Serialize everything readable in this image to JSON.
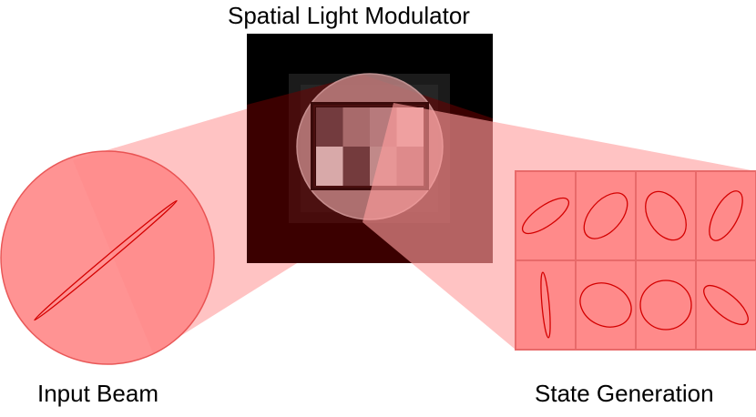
{
  "labels": {
    "slm": "Spatial Light Modulator",
    "input_beam": "Input Beam",
    "state_generation": "State Generation"
  },
  "colors": {
    "beam_fill": "#ff8a8a",
    "beam_stroke": "#e84a4a",
    "cone_fill": "#ff9e9e",
    "slm_outer": "#000000",
    "slm_inner": "#1c1c1c",
    "ellipse_stroke": "#d40000",
    "grid_line": "#e86a6a"
  },
  "slm_pattern": {
    "rows": 2,
    "cols": 4,
    "cells": [
      "#733b3e",
      "#a86a6b",
      "#b77a7c",
      "#d4a3a3",
      "#d8a9a9",
      "#743b3d",
      "#c18989",
      "#a86a6c"
    ]
  },
  "states": {
    "rows": 2,
    "cols": 4,
    "ellipses": [
      {
        "a": 30,
        "b": 11,
        "angle": -35
      },
      {
        "a": 30,
        "b": 17,
        "angle": -48
      },
      {
        "a": 29,
        "b": 19,
        "angle": 58
      },
      {
        "a": 30,
        "b": 13,
        "angle": -62
      },
      {
        "a": 36,
        "b": 4,
        "angle": 85
      },
      {
        "a": 29,
        "b": 23,
        "angle": 25
      },
      {
        "a": 28,
        "b": 27,
        "angle": 0
      },
      {
        "a": 30,
        "b": 12,
        "angle": 40
      }
    ]
  },
  "input_polarization": {
    "a": 102,
    "b": 3,
    "angle": -40
  }
}
